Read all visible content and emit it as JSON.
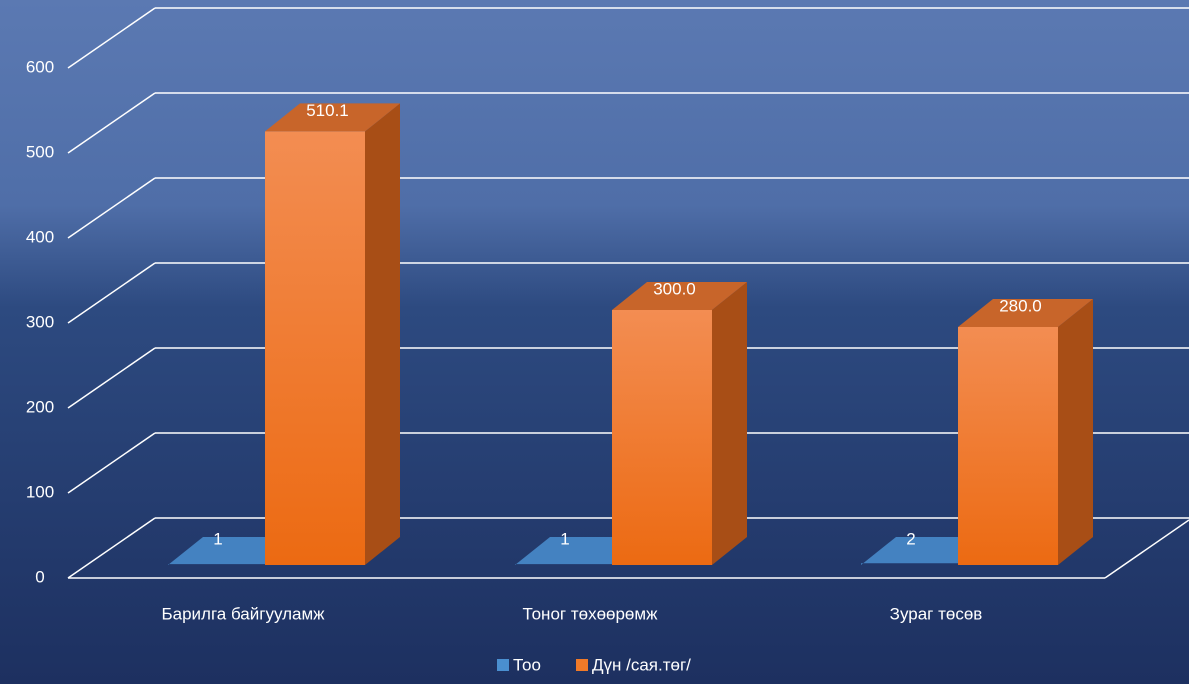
{
  "chart_data": {
    "type": "bar3d",
    "categories": [
      "Барилга байгууламж",
      "Тоног төхөөрөмж",
      "Зураг төсөв"
    ],
    "series": [
      {
        "name": "Тоо",
        "color": "#4a8fd0",
        "values": [
          1,
          1,
          2
        ]
      },
      {
        "name": "Дүн /сая.төг/",
        "color": "#f07a28",
        "values": [
          510.1,
          300.0,
          280.0
        ],
        "value_labels": [
          "510.1",
          "300.0",
          "280.0"
        ]
      }
    ],
    "ylim": [
      0,
      600
    ],
    "yticks": [
      0,
      100,
      200,
      300,
      400,
      500,
      600
    ],
    "grid": true,
    "legend": "bottom"
  }
}
